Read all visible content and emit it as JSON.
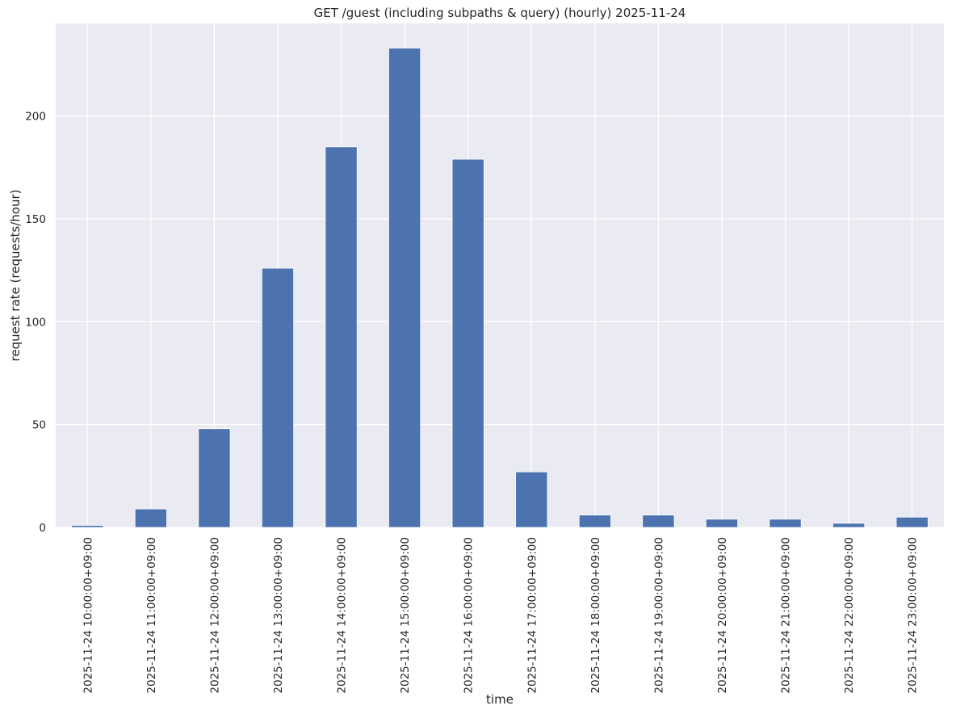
{
  "chart_data": {
    "type": "bar",
    "title": "GET /guest (including subpaths & query) (hourly) 2025-11-24",
    "xlabel": "time",
    "ylabel": "request rate (requests/hour)",
    "categories": [
      "2025-11-24 10:00:00+09:00",
      "2025-11-24 11:00:00+09:00",
      "2025-11-24 12:00:00+09:00",
      "2025-11-24 13:00:00+09:00",
      "2025-11-24 14:00:00+09:00",
      "2025-11-24 15:00:00+09:00",
      "2025-11-24 16:00:00+09:00",
      "2025-11-24 17:00:00+09:00",
      "2025-11-24 18:00:00+09:00",
      "2025-11-24 19:00:00+09:00",
      "2025-11-24 20:00:00+09:00",
      "2025-11-24 21:00:00+09:00",
      "2025-11-24 22:00:00+09:00",
      "2025-11-24 23:00:00+09:00"
    ],
    "values": [
      1,
      9,
      48,
      126,
      185,
      233,
      179,
      27,
      6,
      6,
      4,
      4,
      2,
      5
    ],
    "ylim": [
      0,
      245
    ],
    "yticks": [
      0,
      50,
      100,
      150,
      200
    ],
    "grid": true,
    "legend": "none",
    "colors": {
      "bar": "#4c72b0",
      "plot_background": "#eaeaf2",
      "grid": "#ffffff",
      "text": "#262626"
    }
  }
}
